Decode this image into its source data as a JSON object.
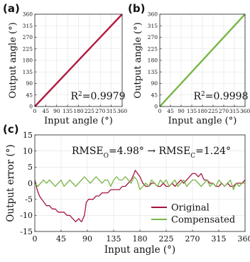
{
  "chart_data": [
    {
      "panel_label": "(a)",
      "type": "line",
      "xlabel": "Input angle (°)",
      "ylabel": "Output angle (°)",
      "xlim": [
        0,
        360
      ],
      "ylim": [
        0,
        360
      ],
      "xticks": [
        0,
        45,
        90,
        135,
        180,
        225,
        270,
        315,
        360
      ],
      "yticks": [
        0,
        45,
        90,
        135,
        180,
        225,
        270,
        315,
        360
      ],
      "grid": true,
      "annotation": {
        "prefix": "R",
        "sup": "2",
        "suffix": "=0.9979"
      },
      "series": [
        {
          "color": "#b2183d",
          "x": [
            0,
            360
          ],
          "y": [
            0,
            360
          ]
        }
      ]
    },
    {
      "panel_label": "(b)",
      "type": "line",
      "xlabel": "Input angle (°)",
      "ylabel": "Output angle (°)",
      "xlim": [
        0,
        360
      ],
      "ylim": [
        0,
        360
      ],
      "xticks": [
        0,
        45,
        90,
        135,
        180,
        225,
        270,
        315,
        360
      ],
      "yticks": [
        0,
        45,
        90,
        135,
        180,
        225,
        270,
        315,
        360
      ],
      "grid": true,
      "annotation": {
        "prefix": "R",
        "sup": "2",
        "suffix": "=0.9998"
      },
      "series": [
        {
          "color": "#7ab648",
          "x": [
            0,
            360
          ],
          "y": [
            0,
            360
          ]
        }
      ]
    },
    {
      "panel_label": "(c)",
      "type": "line",
      "xlabel": "Input angle (°)",
      "ylabel": "Output error (°)",
      "xlim": [
        0,
        360
      ],
      "ylim": [
        -15,
        15
      ],
      "xticks": [
        0,
        45,
        90,
        135,
        180,
        225,
        270,
        315,
        360
      ],
      "yticks": [
        -15,
        -10,
        -5,
        0,
        5,
        10,
        15
      ],
      "grid": true,
      "legend_position": "bottom-right",
      "annotation": {
        "part1": "RMSE",
        "sub1": "O",
        "part2": "=4.98° → RMSE",
        "sub2": "C",
        "part3": "=1.24°"
      },
      "series": [
        {
          "name": "Original",
          "color": "#a3173c",
          "x": [
            0,
            4,
            8,
            12,
            16,
            20,
            25,
            30,
            35,
            40,
            45,
            50,
            55,
            60,
            65,
            70,
            75,
            80,
            85,
            88,
            92,
            96,
            100,
            105,
            110,
            115,
            120,
            125,
            130,
            135,
            140,
            145,
            150,
            155,
            160,
            165,
            170,
            172,
            176,
            180,
            185,
            190,
            195,
            200,
            205,
            210,
            215,
            220,
            225,
            230,
            235,
            240,
            245,
            250,
            255,
            260,
            265,
            270,
            275,
            280,
            285,
            290,
            295,
            300,
            305,
            310,
            315,
            320,
            325,
            330,
            335,
            340,
            345,
            350,
            355,
            360
          ],
          "y": [
            1,
            -2,
            -4,
            -5,
            -6,
            -7,
            -7,
            -8,
            -8,
            -9,
            -9,
            -9,
            -10,
            -10,
            -11,
            -12,
            -11,
            -12,
            -10,
            -6,
            -5,
            -5,
            -5,
            -4,
            -4,
            -3,
            -3,
            -3,
            -2,
            -2,
            -2,
            -2,
            -1,
            -1,
            0,
            1,
            3,
            4,
            3,
            2,
            0,
            -1,
            -1,
            0,
            0,
            -1,
            -1,
            0,
            -1,
            -1,
            0,
            -1,
            0,
            1,
            0,
            1,
            2,
            3,
            3,
            2,
            3,
            1,
            1,
            0,
            0,
            -1,
            -1,
            0,
            -1,
            0,
            -1,
            -1,
            0,
            0,
            0,
            1
          ]
        },
        {
          "name": "Compensated",
          "color": "#7ab648",
          "x": [
            0,
            5,
            10,
            15,
            20,
            25,
            30,
            35,
            40,
            45,
            50,
            55,
            60,
            65,
            70,
            75,
            80,
            85,
            90,
            95,
            100,
            105,
            110,
            115,
            120,
            125,
            130,
            135,
            140,
            145,
            150,
            155,
            160,
            165,
            170,
            175,
            180,
            185,
            190,
            195,
            200,
            205,
            210,
            215,
            220,
            225,
            230,
            235,
            240,
            245,
            250,
            255,
            260,
            265,
            270,
            275,
            280,
            285,
            290,
            295,
            300,
            305,
            310,
            315,
            320,
            325,
            330,
            335,
            340,
            345,
            350,
            355,
            360
          ],
          "y": [
            0,
            -1,
            0,
            1,
            0,
            1,
            0,
            -1,
            0,
            1,
            -1,
            0,
            1,
            0,
            -1,
            0,
            1,
            2,
            1,
            0,
            1,
            2,
            1,
            0,
            1,
            1,
            -1,
            1,
            2,
            1,
            1,
            2,
            1,
            0,
            2,
            1,
            -2,
            -1,
            0,
            -1,
            1,
            0,
            -1,
            1,
            0,
            1,
            -1,
            0,
            1,
            -1,
            0,
            1,
            -1,
            0,
            1,
            1,
            0,
            -1,
            0,
            1,
            -1,
            0,
            -1,
            1,
            0,
            -1,
            0,
            1,
            -2,
            0,
            -1,
            0,
            0
          ]
        }
      ]
    }
  ]
}
